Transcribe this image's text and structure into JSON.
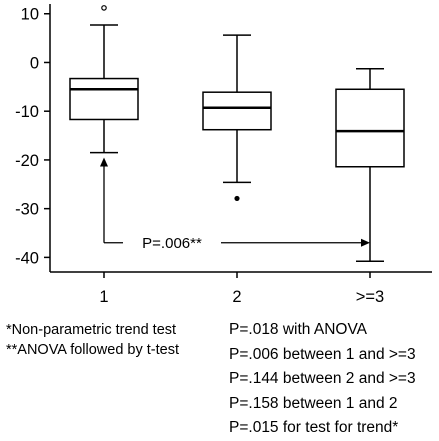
{
  "chart_data": {
    "type": "boxplot",
    "categories": [
      "1",
      "2",
      ">=3"
    ],
    "ylim": [
      -43,
      12
    ],
    "yticks": [
      {
        "value": 10,
        "label": "10"
      },
      {
        "value": 0,
        "label": "0"
      },
      {
        "value": -10,
        "label": "-10"
      },
      {
        "value": -20,
        "label": "-20"
      },
      {
        "value": -30,
        "label": "-30"
      },
      {
        "value": -40,
        "label": "-40"
      }
    ],
    "boxes": [
      {
        "category": "1",
        "whisker_low": -18.5,
        "q1": -11.7,
        "median": -5.5,
        "q3": -3.3,
        "whisker_high": 7.7,
        "outliers": [
          {
            "value": 11.2,
            "marker": "open-circle"
          }
        ]
      },
      {
        "category": "2",
        "whisker_low": -24.6,
        "q1": -13.8,
        "median": -9.3,
        "q3": -6.1,
        "whisker_high": 5.6,
        "outliers": [
          {
            "value": -27.9,
            "marker": "filled-dot"
          }
        ]
      },
      {
        "category": ">=3",
        "whisker_low": -40.8,
        "q1": -21.4,
        "median": -14.1,
        "q3": -5.5,
        "whisker_high": -1.3,
        "outliers": []
      }
    ],
    "annotation": {
      "text": "P=.006**",
      "from_category": "1",
      "to_category": ">=3",
      "from_value": -19.5,
      "to_value": -37
    }
  },
  "footnotes": {
    "left": [
      "*Non-parametric trend test",
      "**ANOVA followed by t-test"
    ],
    "right": [
      "P=.018 with ANOVA",
      "P=.006 between 1 and >=3",
      "P=.144 between 2 and >=3",
      "P=.158 between 1 and 2",
      "P=.015 for test for trend*"
    ]
  }
}
